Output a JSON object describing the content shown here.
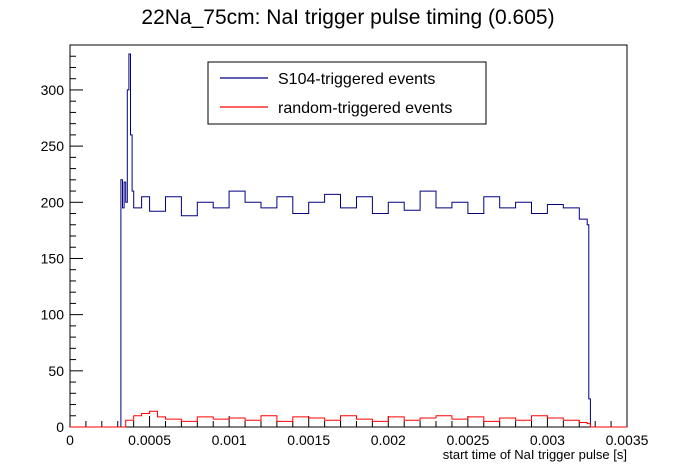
{
  "chart_data": {
    "type": "line",
    "title": "22Na_75cm: NaI trigger pulse timing (0.605)",
    "xlabel": "start time of NaI trigger pulse [s]",
    "ylabel": "",
    "xlim": [
      0,
      0.0035
    ],
    "ylim": [
      0,
      340
    ],
    "x_ticks": [
      "0",
      "0.0005",
      "0.001",
      "0.0015",
      "0.002",
      "0.0025",
      "0.003",
      "0.0035"
    ],
    "y_ticks": [
      "0",
      "50",
      "100",
      "150",
      "200",
      "250",
      "300"
    ],
    "legend_position": "top-center",
    "grid": false,
    "series": [
      {
        "name": "S104-triggered events",
        "color": "#000080",
        "step": true,
        "x": [
          0,
          0.00031,
          0.00032,
          0.00033,
          0.00034,
          0.00035,
          0.00036,
          0.00037,
          0.00038,
          0.00039,
          0.0004,
          0.00045,
          0.0005,
          0.0006,
          0.0007,
          0.0008,
          0.0009,
          0.001,
          0.0011,
          0.0012,
          0.0013,
          0.0014,
          0.0015,
          0.0016,
          0.0017,
          0.0018,
          0.0019,
          0.002,
          0.0021,
          0.0022,
          0.0023,
          0.0024,
          0.0025,
          0.0026,
          0.0027,
          0.0028,
          0.0029,
          0.003,
          0.0031,
          0.0032,
          0.00325,
          0.00326,
          0.00327,
          0.0035
        ],
        "y": [
          0,
          0,
          220,
          195,
          218,
          200,
          300,
          332,
          260,
          210,
          195,
          205,
          192,
          205,
          188,
          200,
          195,
          210,
          200,
          195,
          205,
          190,
          200,
          207,
          195,
          205,
          190,
          200,
          193,
          210,
          195,
          200,
          190,
          205,
          195,
          200,
          190,
          198,
          195,
          185,
          180,
          25,
          0,
          0
        ]
      },
      {
        "name": "random-triggered events",
        "color": "#ff0000",
        "step": true,
        "x": [
          0,
          0.00031,
          0.00035,
          0.0004,
          0.00045,
          0.0005,
          0.00055,
          0.0006,
          0.0007,
          0.0008,
          0.0009,
          0.001,
          0.0011,
          0.0012,
          0.0013,
          0.0014,
          0.0015,
          0.0016,
          0.0017,
          0.0018,
          0.0019,
          0.002,
          0.0021,
          0.0022,
          0.0023,
          0.0024,
          0.0025,
          0.0026,
          0.0027,
          0.0028,
          0.0029,
          0.003,
          0.0031,
          0.0032,
          0.00325,
          0.00327,
          0.0035
        ],
        "y": [
          0,
          0,
          6,
          10,
          12,
          14,
          9,
          7,
          5,
          9,
          7,
          8,
          6,
          10,
          5,
          9,
          8,
          6,
          10,
          7,
          5,
          9,
          6,
          8,
          10,
          7,
          9,
          5,
          8,
          6,
          10,
          8,
          6,
          4,
          3,
          0,
          0
        ]
      }
    ]
  }
}
